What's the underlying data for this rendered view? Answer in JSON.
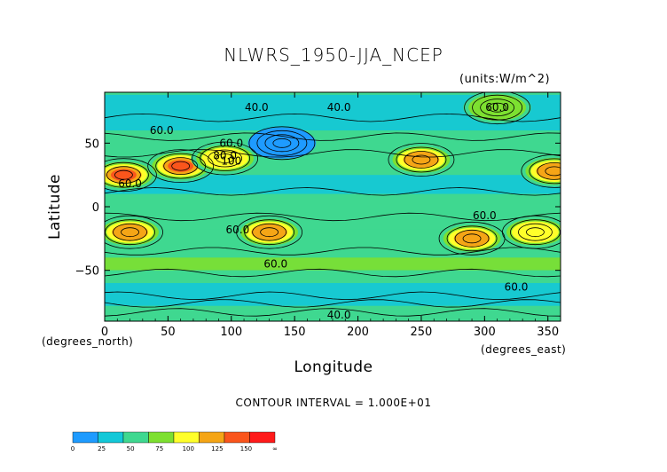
{
  "chart_data": {
    "type": "heatmap",
    "title": "NLWRS_1950-JJA_NCEP",
    "units": "(units:W/m^2)",
    "xlabel": "Longitude",
    "ylabel": "Latitude",
    "x_unit_label": "(degrees_north)",
    "y_unit_label": "(degrees_east)",
    "xlim": [
      0,
      360
    ],
    "ylim": [
      -90,
      90
    ],
    "x_ticks": [
      0,
      50,
      100,
      150,
      200,
      250,
      300,
      350
    ],
    "y_ticks": [
      50,
      0,
      -50
    ],
    "contour_interval_text": "CONTOUR INTERVAL = 1.000E+01",
    "colorbar": {
      "ticks": [
        "0",
        "25",
        "50",
        "75",
        "100",
        "125",
        "150",
        "∞"
      ],
      "colors": [
        "#1e9bff",
        "#13c8d8",
        "#3fd890",
        "#7de030",
        "#ffff2a",
        "#f5a516",
        "#fa551c",
        "#ff1a1a"
      ]
    },
    "contour_labels": [
      "40.0",
      "40.0",
      "60.0",
      "60.0",
      "80.0",
      "100",
      "60.0",
      "60.0",
      "60.0",
      "60.0",
      "60.0",
      "60.0",
      "40.0"
    ],
    "field_features": [
      {
        "lon": 15,
        "lat": 25,
        "value": 150
      },
      {
        "lon": 60,
        "lat": 32,
        "value": 150
      },
      {
        "lon": 95,
        "lat": 38,
        "value": 100
      },
      {
        "lon": 140,
        "lat": 50,
        "value": 15
      },
      {
        "lon": 250,
        "lat": 37,
        "value": 135
      },
      {
        "lon": 355,
        "lat": 28,
        "value": 145
      },
      {
        "lon": 20,
        "lat": -20,
        "value": 130
      },
      {
        "lon": 130,
        "lat": -20,
        "value": 130
      },
      {
        "lon": 290,
        "lat": -25,
        "value": 145
      },
      {
        "lon": 340,
        "lat": -20,
        "value": 120
      },
      {
        "lon": 310,
        "lat": 78,
        "value": 90
      }
    ]
  }
}
